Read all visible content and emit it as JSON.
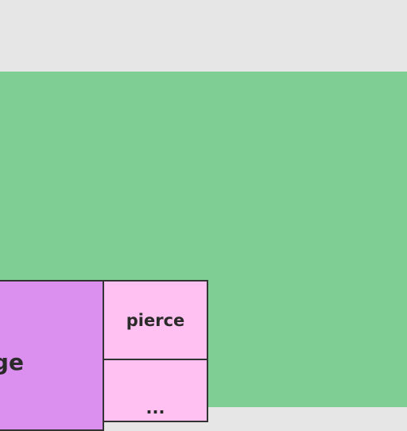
{
  "tiles": {
    "large": {
      "label": "age",
      "color": "#db8fee"
    },
    "small_1": {
      "label": "pierce",
      "color": "#fec1f1"
    },
    "small_2": {
      "label": "...",
      "color": "#fec1f1"
    }
  },
  "canvas": {
    "background": "#7fce93"
  },
  "topbar": {
    "background": "#e6e6e6"
  }
}
